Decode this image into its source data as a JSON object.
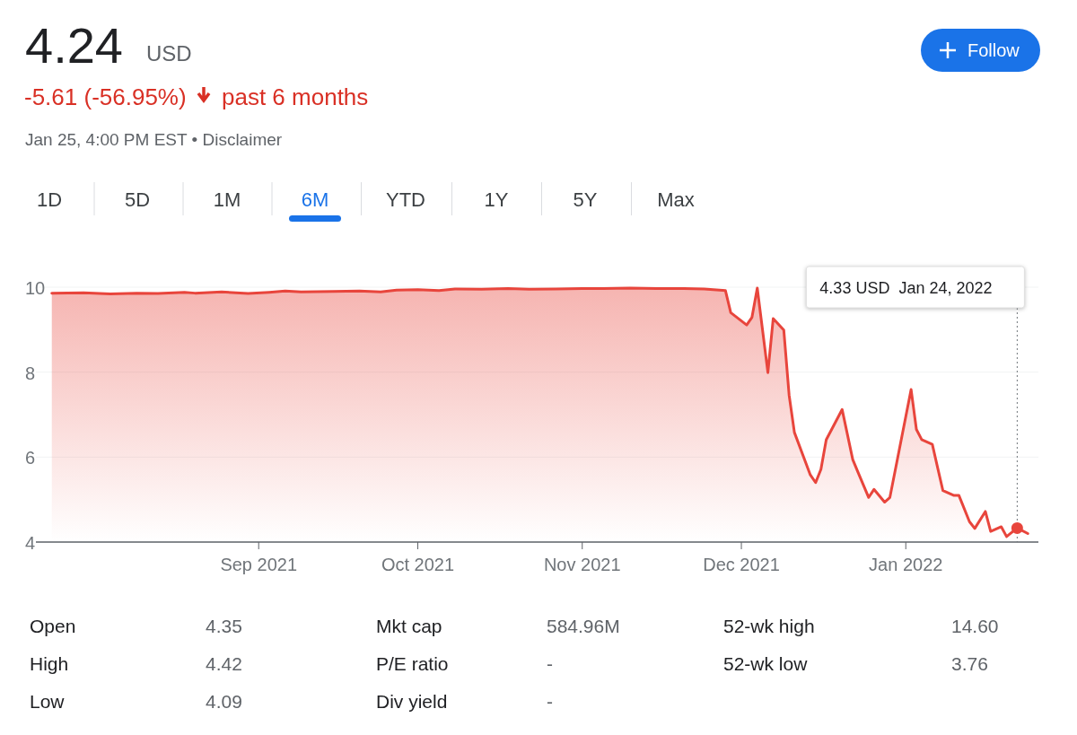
{
  "chart_data": {
    "type": "area",
    "title": "4.24 USD",
    "subtitle": "-5.61 (-56.95%) past 6 months",
    "x": [
      "2021-07-24",
      "2021-07-30",
      "2021-08-04",
      "2021-08-09",
      "2021-08-13",
      "2021-08-18",
      "2021-08-20",
      "2021-08-25",
      "2021-08-30",
      "2021-09-03",
      "2021-09-06",
      "2021-09-09",
      "2021-09-15",
      "2021-09-20",
      "2021-09-24",
      "2021-09-27",
      "2021-10-01",
      "2021-10-05",
      "2021-10-08",
      "2021-10-13",
      "2021-10-18",
      "2021-10-22",
      "2021-10-27",
      "2021-11-01",
      "2021-11-05",
      "2021-11-10",
      "2021-11-15",
      "2021-11-19",
      "2021-11-24",
      "2021-11-28",
      "2021-11-29",
      "2021-12-02",
      "2021-12-03",
      "2021-12-04",
      "2021-12-06",
      "2021-12-07",
      "2021-12-09",
      "2021-12-10",
      "2021-12-11",
      "2021-12-14",
      "2021-12-15",
      "2021-12-16",
      "2021-12-17",
      "2021-12-20",
      "2021-12-22",
      "2021-12-23",
      "2021-12-25",
      "2021-12-26",
      "2021-12-28",
      "2021-12-29",
      "2022-01-02",
      "2022-01-03",
      "2022-01-04",
      "2022-01-06",
      "2022-01-07",
      "2022-01-08",
      "2022-01-10",
      "2022-01-11",
      "2022-01-13",
      "2022-01-14",
      "2022-01-16",
      "2022-01-17",
      "2022-01-19",
      "2022-01-20",
      "2022-01-22",
      "2022-01-24"
    ],
    "series": [
      {
        "color": "#e8453c",
        "values": [
          9.86,
          9.87,
          9.84,
          9.86,
          9.85,
          9.88,
          9.86,
          9.89,
          9.85,
          9.88,
          9.91,
          9.89,
          9.9,
          9.91,
          9.89,
          9.93,
          9.94,
          9.92,
          9.96,
          9.95,
          9.97,
          9.95,
          9.96,
          9.97,
          9.97,
          9.98,
          9.97,
          9.97,
          9.96,
          9.92,
          9.4,
          9.11,
          9.29,
          9.98,
          7.99,
          9.26,
          8.99,
          7.46,
          6.58,
          5.58,
          5.4,
          5.71,
          6.41,
          7.12,
          5.94,
          5.64,
          5.05,
          5.24,
          4.94,
          5.05,
          7.59,
          6.65,
          6.41,
          6.3,
          5.75,
          5.21,
          5.1,
          5.1,
          4.48,
          4.32,
          4.72,
          4.25,
          4.36,
          4.13,
          4.33,
          4.2
        ]
      }
    ],
    "xlim": [
      "2021-07-21",
      "2022-01-26"
    ],
    "xticks": [
      {
        "value": "2021-09-01",
        "label": "Sep 2021"
      },
      {
        "value": "2021-10-01",
        "label": "Oct 2021"
      },
      {
        "value": "2021-11-01",
        "label": "Nov 2021"
      },
      {
        "value": "2021-12-01",
        "label": "Dec 2021"
      },
      {
        "value": "2022-01-01",
        "label": "Jan 2022"
      }
    ],
    "ylim": [
      4,
      10
    ],
    "yticks": [
      4,
      6,
      8,
      10
    ],
    "grid": "y",
    "annotations": [
      "Jan 25, 4:00 PM EST • Disclaimer",
      "Follow",
      "1D",
      "5D",
      "1M",
      "6M",
      "YTD",
      "1Y",
      "5Y",
      "Max",
      "Open",
      "4.35",
      "Mkt cap",
      "584.96M",
      "52-wk high",
      "14.60",
      "High",
      "4.42",
      "P/E ratio",
      "-",
      "52-wk low",
      "3.76",
      "Low",
      "4.09",
      "Div yield",
      "-",
      "4.33 USD  Jan 24, 2022"
    ],
    "ref_lines": [
      {
        "axis": "x",
        "value": "2022-01-22",
        "color": "#70757a",
        "line_style": "dotted"
      }
    ]
  }
}
